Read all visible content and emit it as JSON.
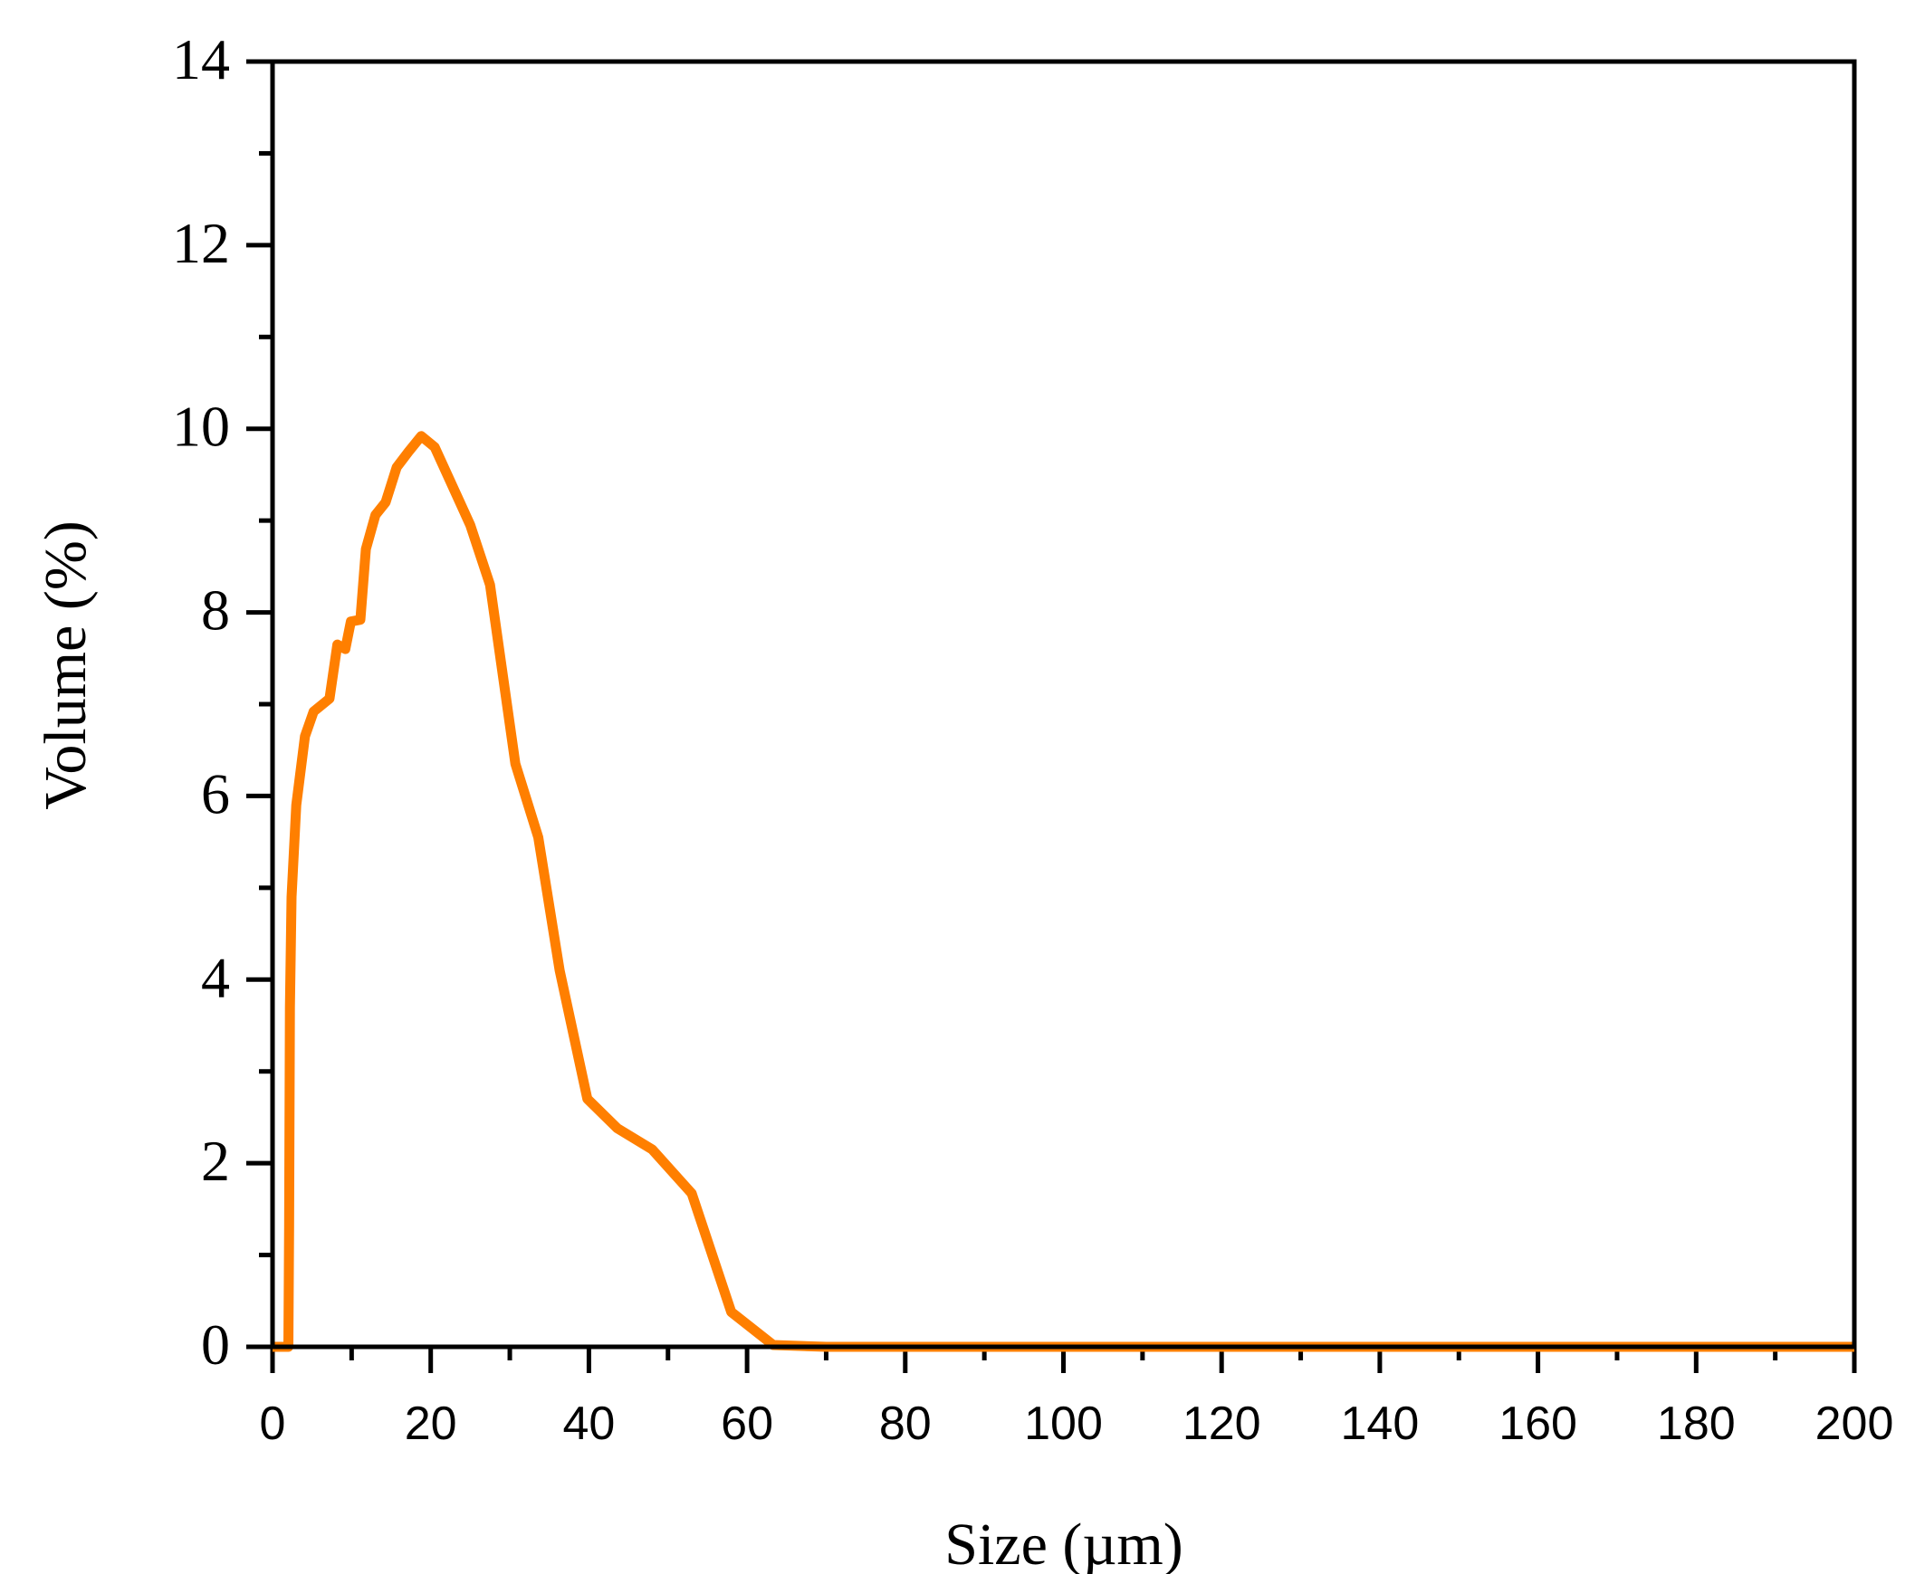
{
  "chart_data": {
    "type": "line",
    "title": "",
    "xlabel": "Size (µm)",
    "ylabel": "Volume (%)",
    "xlim": [
      0,
      200
    ],
    "ylim": [
      0,
      14
    ],
    "x_ticks": [
      0,
      20,
      40,
      60,
      80,
      100,
      120,
      140,
      160,
      180,
      200
    ],
    "x_tick_labels": [
      "0",
      "20",
      "40",
      "60",
      "80",
      "100",
      "120",
      "140",
      "160",
      "180",
      "200"
    ],
    "x_minor_step": 10,
    "y_ticks": [
      0,
      2,
      4,
      6,
      8,
      10,
      12,
      14
    ],
    "y_tick_labels": [
      "0",
      "2",
      "4",
      "6",
      "8",
      "10",
      "12",
      "14"
    ],
    "y_minor_step": 1,
    "grid": false,
    "legend": null,
    "series": [
      {
        "name": "Volume",
        "color": "#FF7F00",
        "x": [
          0,
          2,
          2.1,
          2.2,
          2.4,
          3.0,
          4.1,
          5.2,
          7.2,
          8.2,
          9.2,
          9.9,
          11.1,
          11.8,
          13.0,
          14.3,
          15.7,
          17.2,
          18.8,
          20.5,
          25.0,
          27.5,
          30.7,
          33.6,
          36.3,
          39.8,
          43.6,
          48.0,
          53.0,
          58.0,
          63.3,
          70,
          200
        ],
        "y": [
          0,
          0,
          1.3,
          3.7,
          4.9,
          5.9,
          6.65,
          6.92,
          7.06,
          7.65,
          7.6,
          7.9,
          7.92,
          8.69,
          9.06,
          9.2,
          9.58,
          9.75,
          9.92,
          9.8,
          8.95,
          8.3,
          6.35,
          5.55,
          4.1,
          2.7,
          2.38,
          2.15,
          1.67,
          0.38,
          0.02,
          0,
          0
        ]
      }
    ]
  }
}
